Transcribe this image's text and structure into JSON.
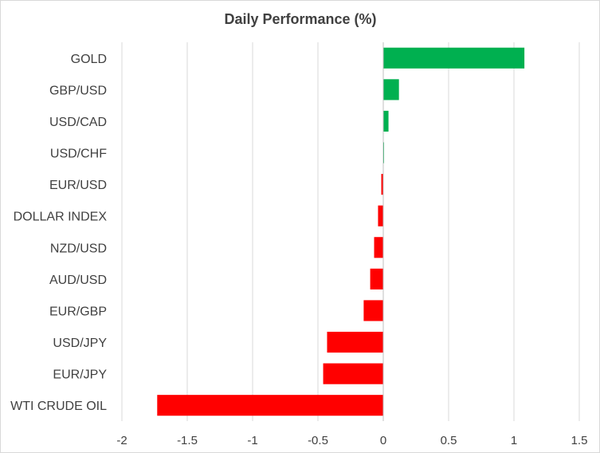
{
  "chart_data": {
    "type": "bar",
    "orientation": "horizontal",
    "title": "Daily Performance (%)",
    "xlabel": "",
    "ylabel": "",
    "categories": [
      "GOLD",
      "GBP/USD",
      "USD/CAD",
      "USD/CHF",
      "EUR/USD",
      "DOLLAR INDEX",
      "NZD/USD",
      "AUD/USD",
      "EUR/GBP",
      "USD/JPY",
      "EUR/JPY",
      "WTI CRUDE OIL"
    ],
    "values": [
      1.08,
      0.12,
      0.04,
      0.005,
      -0.015,
      -0.04,
      -0.07,
      -0.1,
      -0.15,
      -0.43,
      -0.46,
      -1.73
    ],
    "xlim": [
      -2,
      1.5
    ],
    "xticks": [
      -2,
      -1.5,
      -1,
      -0.5,
      0,
      0.5,
      1,
      1.5
    ],
    "xtick_labels": [
      "-2",
      "-1.5",
      "-1",
      "-0.5",
      "0",
      "0.5",
      "1",
      "1.5"
    ],
    "grid": "vertical",
    "legend": "none",
    "colors": {
      "positive": "#00b050",
      "negative": "#ff0000",
      "gridline": "#d9d9d9",
      "axis": "#bfbfbf",
      "text": "#404040"
    }
  }
}
